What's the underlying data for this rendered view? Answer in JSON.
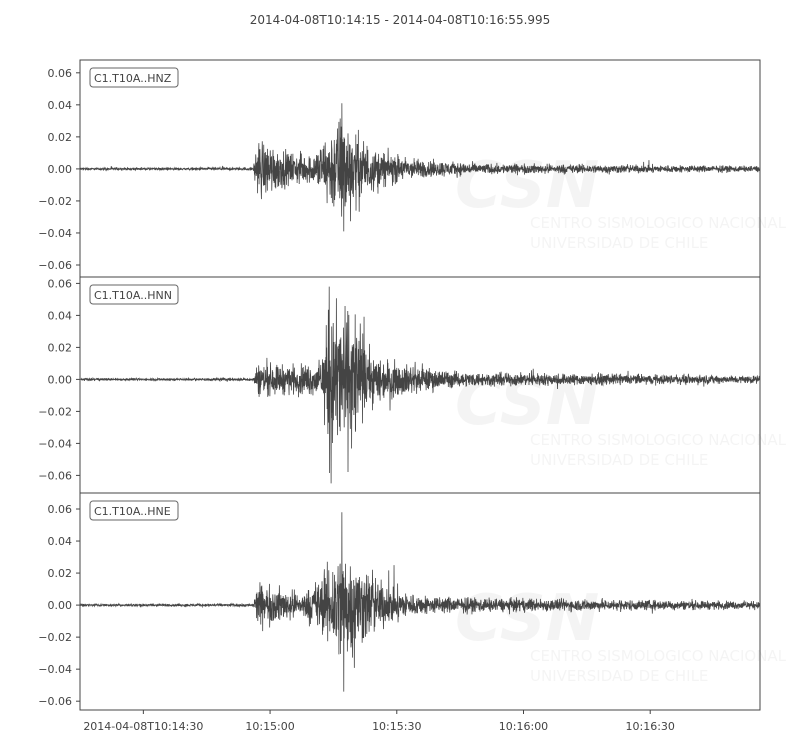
{
  "chart_data": {
    "type": "line",
    "title": "2014-04-08T10:14:15  -  2014-04-08T10:16:55.995",
    "x_range": [
      "2014-04-08T10:14:15",
      "2014-04-08T10:16:55.995"
    ],
    "x_ticks": [
      {
        "time": "10:14:30",
        "label": "2014-04-08T10:14:30"
      },
      {
        "time": "10:15:00",
        "label": "10:15:00"
      },
      {
        "time": "10:15:30",
        "label": "10:15:30"
      },
      {
        "time": "10:16:00",
        "label": "10:16:00"
      },
      {
        "time": "10:16:30",
        "label": "10:16:30"
      }
    ],
    "y_ticks": [
      "0.06",
      "0.04",
      "0.02",
      "0.00",
      "−0.02",
      "−0.04",
      "−0.06"
    ],
    "y_tick_values": [
      0.06,
      0.04,
      0.02,
      0.0,
      -0.02,
      -0.04,
      -0.06
    ],
    "line_color": "#444444",
    "watermark": {
      "logo": "CSN",
      "text_line1": "CENTRO SISMOLOGICO NACIONAL",
      "text_line2": "UNIVERSIDAD DE CHILE"
    },
    "series": [
      {
        "name": "C1.T10A..HNZ",
        "ylim": [
          -0.0675,
          0.068
        ],
        "peak_max": 0.041,
        "peak_min": -0.039,
        "envelope": [
          [
            "10:14:15",
            0.0005
          ],
          [
            "10:14:56",
            0.0006
          ],
          [
            "10:14:57",
            0.013
          ],
          [
            "10:15:00",
            0.011
          ],
          [
            "10:15:04",
            0.007
          ],
          [
            "10:15:10",
            0.006
          ],
          [
            "10:15:13",
            0.013
          ],
          [
            "10:15:17",
            0.024
          ],
          [
            "10:15:20",
            0.016
          ],
          [
            "10:15:25",
            0.008
          ],
          [
            "10:15:35",
            0.004
          ],
          [
            "10:15:50",
            0.0022
          ],
          [
            "10:16:55",
            0.0013
          ]
        ]
      },
      {
        "name": "C1.T10A..HNN",
        "ylim": [
          -0.071,
          0.064
        ],
        "peak_max": 0.058,
        "peak_min": -0.065,
        "envelope": [
          [
            "10:14:15",
            0.0005
          ],
          [
            "10:14:56",
            0.0006
          ],
          [
            "10:14:57",
            0.007
          ],
          [
            "10:15:05",
            0.006
          ],
          [
            "10:15:12",
            0.007
          ],
          [
            "10:15:14",
            0.03
          ],
          [
            "10:15:20",
            0.03
          ],
          [
            "10:15:23",
            0.012
          ],
          [
            "10:15:30",
            0.007
          ],
          [
            "10:15:45",
            0.003
          ],
          [
            "10:16:55",
            0.0016
          ]
        ]
      },
      {
        "name": "C1.T10A..HNE",
        "ylim": [
          -0.0655,
          0.07
        ],
        "peak_max": 0.058,
        "peak_min": -0.054,
        "envelope": [
          [
            "10:14:15",
            0.0005
          ],
          [
            "10:14:56",
            0.0006
          ],
          [
            "10:14:57",
            0.009
          ],
          [
            "10:15:00",
            0.008
          ],
          [
            "10:15:08",
            0.005
          ],
          [
            "10:15:13",
            0.014
          ],
          [
            "10:15:17",
            0.026
          ],
          [
            "10:15:22",
            0.016
          ],
          [
            "10:15:27",
            0.009
          ],
          [
            "10:15:35",
            0.004
          ],
          [
            "10:15:50",
            0.003
          ],
          [
            "10:16:55",
            0.0016
          ]
        ]
      }
    ]
  }
}
